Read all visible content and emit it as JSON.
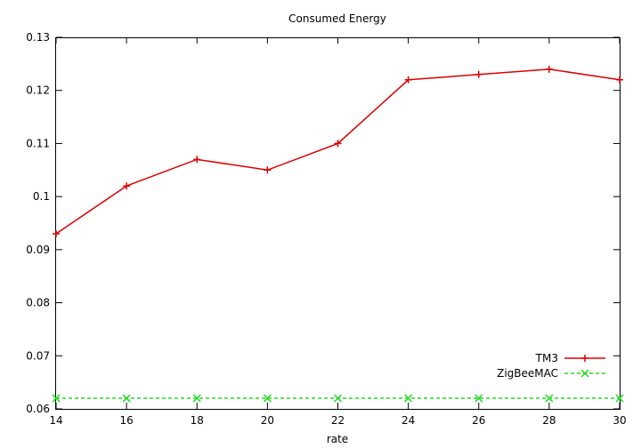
{
  "chart_data": {
    "type": "line",
    "title": "Consumed Energy",
    "xlabel": "rate",
    "ylabel": "",
    "xlim": [
      14,
      30
    ],
    "ylim": [
      0.06,
      0.13
    ],
    "x_ticks": [
      14,
      16,
      18,
      20,
      22,
      24,
      26,
      28,
      30
    ],
    "y_ticks": [
      0.06,
      0.07,
      0.08,
      0.09,
      0.1,
      0.11,
      0.12,
      0.13
    ],
    "x_tick_labels": [
      "14",
      "16",
      "18",
      "20",
      "22",
      "24",
      "26",
      "28",
      "30"
    ],
    "y_tick_labels": [
      "0.06",
      "0.07",
      "0.08",
      "0.09",
      "0.1",
      "0.11",
      "0.12",
      "0.13"
    ],
    "grid": false,
    "legend_position": "bottom-right",
    "series": [
      {
        "name": "TM3",
        "color": "#dd0000",
        "marker": "plus",
        "line_style": "solid",
        "x": [
          14,
          16,
          18,
          20,
          22,
          24,
          26,
          28,
          30
        ],
        "y": [
          0.093,
          0.102,
          0.107,
          0.105,
          0.11,
          0.122,
          0.123,
          0.124,
          0.122
        ]
      },
      {
        "name": "ZigBeeMAC",
        "color": "#22dd22",
        "marker": "x",
        "line_style": "dashed",
        "x": [
          14,
          16,
          18,
          20,
          22,
          24,
          26,
          28,
          30
        ],
        "y": [
          0.062,
          0.062,
          0.062,
          0.062,
          0.062,
          0.062,
          0.062,
          0.062,
          0.062
        ]
      }
    ]
  }
}
